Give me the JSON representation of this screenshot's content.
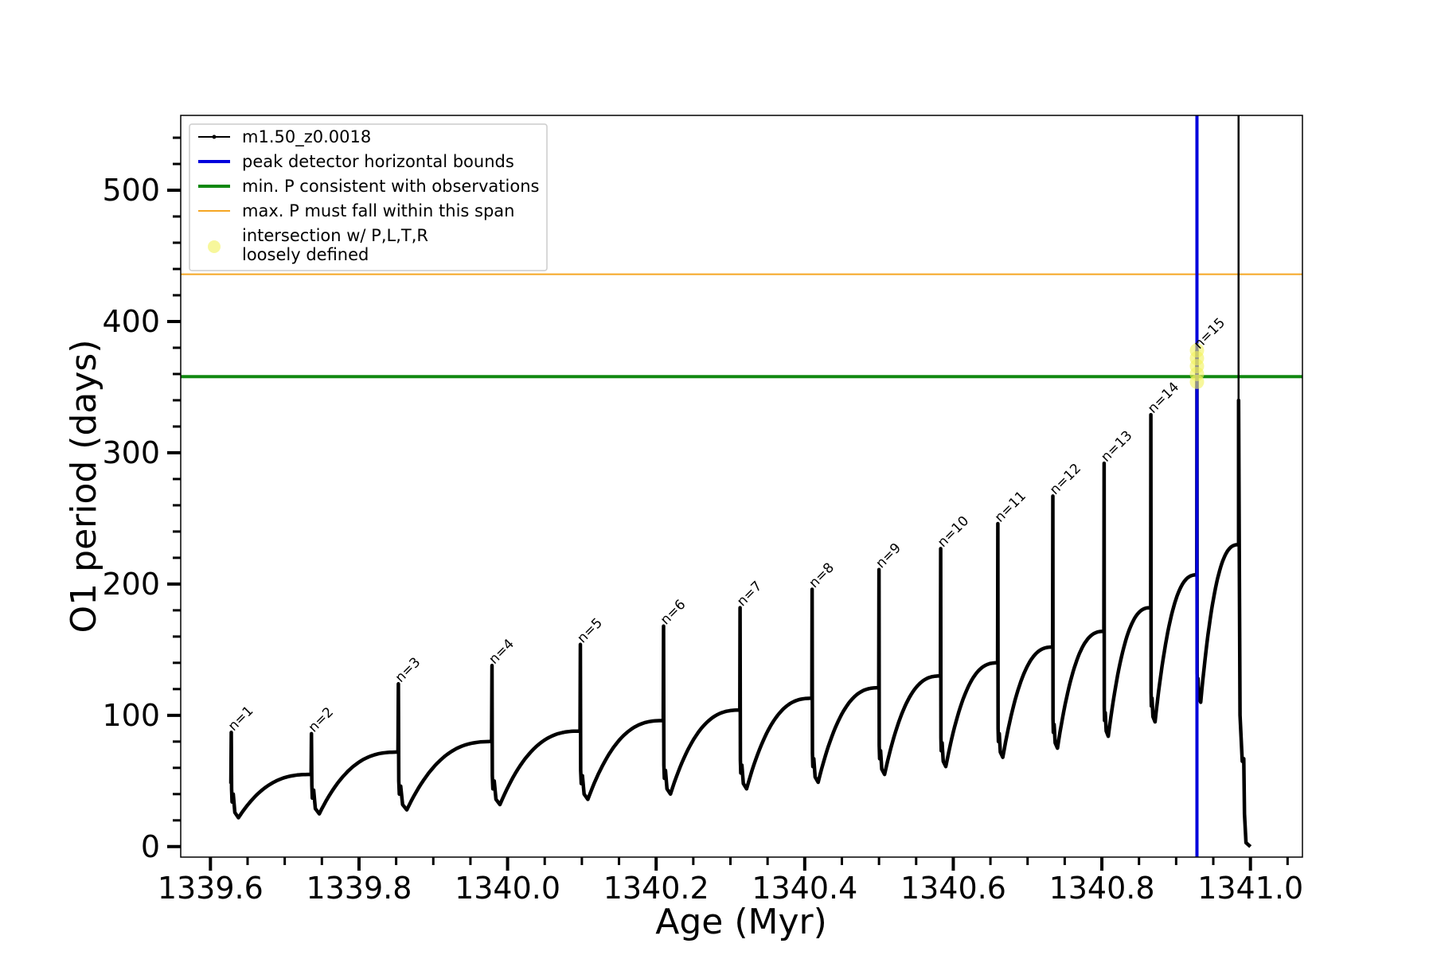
{
  "chart_data": {
    "type": "line",
    "title": "",
    "xlabel": "Age (Myr)",
    "ylabel": "O1 period (days)",
    "xlim": [
      1339.56,
      1341.07
    ],
    "ylim": [
      -8,
      557
    ],
    "x_ticks": [
      1339.6,
      1339.8,
      1340.0,
      1340.2,
      1340.4,
      1340.6,
      1340.8,
      1341.0
    ],
    "x_tick_labels": [
      "1339.6",
      "1339.8",
      "1340.0",
      "1340.2",
      "1340.4",
      "1340.6",
      "1340.8",
      "1341.0"
    ],
    "y_ticks": [
      0,
      100,
      200,
      300,
      400,
      500
    ],
    "y_tick_labels": [
      "0",
      "100",
      "200",
      "300",
      "400",
      "500"
    ],
    "legend_position": "top-left",
    "colors": {
      "series": "#000000",
      "blue": "#0000dd",
      "green": "#118811",
      "orange": "#f5a623",
      "highlight": "#f2f25a"
    },
    "legend": [
      {
        "label": "m1.50_z0.0018",
        "style": "line-marker",
        "color": "#000000"
      },
      {
        "label": "peak detector horizontal bounds",
        "style": "line",
        "color": "#0000dd"
      },
      {
        "label": "min. P consistent with observations",
        "style": "line",
        "color": "#118811"
      },
      {
        "label": "max. P must fall within this span",
        "style": "thin-line",
        "color": "#f5a623"
      },
      {
        "label": "intersection w/ P,L,T,R",
        "label2": "loosely defined",
        "style": "dot",
        "color": "#f2f25a"
      }
    ],
    "reference_lines": {
      "min_period": 358,
      "max_period": 436,
      "peak_detector_bound_age": 1340.928,
      "final_peak_age": 1340.984
    },
    "highlight_points": [
      {
        "x": 1340.928,
        "y": 378
      },
      {
        "x": 1340.928,
        "y": 372
      },
      {
        "x": 1340.928,
        "y": 366
      },
      {
        "x": 1340.928,
        "y": 360
      },
      {
        "x": 1340.928,
        "y": 354
      }
    ],
    "pulses": [
      {
        "label": "n=1",
        "age": 1339.628,
        "peak": 87,
        "dip": 22,
        "end_age": 1339.736,
        "end_value": 55
      },
      {
        "label": "n=2",
        "age": 1339.736,
        "peak": 86,
        "dip": 25,
        "end_age": 1339.853,
        "end_value": 72
      },
      {
        "label": "n=3",
        "age": 1339.853,
        "peak": 124,
        "dip": 28,
        "end_age": 1339.979,
        "end_value": 80
      },
      {
        "label": "n=4",
        "age": 1339.979,
        "peak": 138,
        "dip": 32,
        "end_age": 1340.098,
        "end_value": 88
      },
      {
        "label": "n=5",
        "age": 1340.098,
        "peak": 154,
        "dip": 36,
        "end_age": 1340.21,
        "end_value": 96
      },
      {
        "label": "n=6",
        "age": 1340.21,
        "peak": 168,
        "dip": 40,
        "end_age": 1340.313,
        "end_value": 104
      },
      {
        "label": "n=7",
        "age": 1340.313,
        "peak": 182,
        "dip": 44,
        "end_age": 1340.41,
        "end_value": 113
      },
      {
        "label": "n=8",
        "age": 1340.41,
        "peak": 196,
        "dip": 49,
        "end_age": 1340.5,
        "end_value": 121
      },
      {
        "label": "n=9",
        "age": 1340.5,
        "peak": 211,
        "dip": 55,
        "end_age": 1340.583,
        "end_value": 130
      },
      {
        "label": "n=10",
        "age": 1340.583,
        "peak": 227,
        "dip": 61,
        "end_age": 1340.66,
        "end_value": 140
      },
      {
        "label": "n=11",
        "age": 1340.66,
        "peak": 246,
        "dip": 68,
        "end_age": 1340.734,
        "end_value": 152
      },
      {
        "label": "n=12",
        "age": 1340.734,
        "peak": 267,
        "dip": 75,
        "end_age": 1340.803,
        "end_value": 164
      },
      {
        "label": "n=13",
        "age": 1340.803,
        "peak": 292,
        "dip": 84,
        "end_age": 1340.866,
        "end_value": 182
      },
      {
        "label": "n=14",
        "age": 1340.866,
        "peak": 329,
        "dip": 95,
        "end_age": 1340.928,
        "end_value": 207
      },
      {
        "label": "n=15",
        "age": 1340.928,
        "peak": 378,
        "dip": 110,
        "end_age": 1340.984,
        "end_value": 230
      }
    ],
    "final_segment": [
      {
        "x": 1340.984,
        "y": 340
      },
      {
        "x": 1340.986,
        "y": 100
      },
      {
        "x": 1340.989,
        "y": 65
      },
      {
        "x": 1340.991,
        "y": 67
      },
      {
        "x": 1340.992,
        "y": 25
      },
      {
        "x": 1340.994,
        "y": 3
      },
      {
        "x": 1341.0,
        "y": 0
      }
    ]
  }
}
